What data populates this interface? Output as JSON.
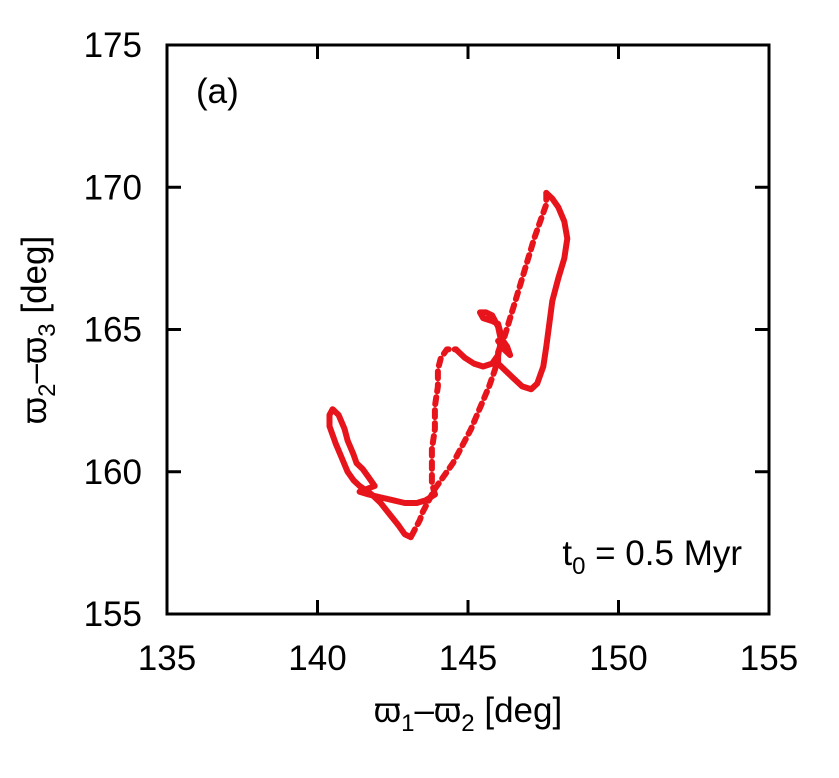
{
  "chart_data": {
    "type": "scatter",
    "title": "",
    "xlabel": {
      "pre": "ϖ",
      "sub1": "1",
      "mid": "–ϖ",
      "sub2": "2",
      "post": " [deg]"
    },
    "ylabel": {
      "pre": "ϖ",
      "sub1": "2",
      "mid": "–ϖ",
      "sub2": "3",
      "post": " [deg]"
    },
    "xlim": [
      135,
      155
    ],
    "ylim": [
      155,
      175
    ],
    "x_ticks": [
      "135",
      "140",
      "145",
      "150",
      "155"
    ],
    "y_ticks": [
      "155",
      "160",
      "165",
      "170",
      "175"
    ],
    "grid": false,
    "panel_label": "(a)",
    "annotation": {
      "pre": "t",
      "sub": "0",
      "post": " = 0.5 Myr"
    },
    "series": [
      {
        "color": "#e8141c",
        "segments": [
          {
            "style": "dotted",
            "points": [
              [
                147.6,
                169.8
              ],
              [
                147.6,
                169.4
              ],
              [
                147.4,
                168.8
              ],
              [
                147.2,
                168.2
              ],
              [
                147.0,
                167.5
              ],
              [
                146.8,
                166.8
              ],
              [
                146.6,
                166.1
              ],
              [
                146.4,
                165.4
              ],
              [
                146.2,
                164.7
              ],
              [
                146.0,
                164.1
              ],
              [
                145.9,
                163.6
              ],
              [
                145.7,
                163.0
              ],
              [
                145.5,
                162.5
              ],
              [
                145.3,
                162.0
              ],
              [
                145.1,
                161.5
              ],
              [
                144.9,
                161.1
              ],
              [
                144.7,
                160.7
              ],
              [
                144.5,
                160.3
              ],
              [
                144.3,
                160.0
              ],
              [
                144.1,
                159.7
              ],
              [
                143.9,
                159.4
              ],
              [
                143.7,
                159.0
              ],
              [
                143.5,
                158.6
              ],
              [
                143.4,
                158.3
              ],
              [
                143.2,
                157.9
              ],
              [
                143.1,
                157.7
              ]
            ]
          },
          {
            "style": "solid",
            "points": [
              [
                143.1,
                157.7
              ],
              [
                142.9,
                157.8
              ],
              [
                142.7,
                158.1
              ],
              [
                142.4,
                158.5
              ],
              [
                142.1,
                158.9
              ],
              [
                141.8,
                159.2
              ],
              [
                141.4,
                159.5
              ],
              [
                141.2,
                159.7
              ],
              [
                141.0,
                160.0
              ],
              [
                140.8,
                160.5
              ],
              [
                140.6,
                161.0
              ],
              [
                140.4,
                161.6
              ],
              [
                140.4,
                162.0
              ],
              [
                140.5,
                162.2
              ],
              [
                140.7,
                162.0
              ],
              [
                140.9,
                161.5
              ],
              [
                141.0,
                161.1
              ],
              [
                141.2,
                160.6
              ],
              [
                141.3,
                160.3
              ],
              [
                141.5,
                160.1
              ],
              [
                141.7,
                159.8
              ],
              [
                141.9,
                159.5
              ],
              [
                141.4,
                159.3
              ],
              [
                141.7,
                159.2
              ],
              [
                142.1,
                159.1
              ],
              [
                142.5,
                159.0
              ],
              [
                142.9,
                158.9
              ],
              [
                143.3,
                158.9
              ],
              [
                143.6,
                159.0
              ],
              [
                143.9,
                159.2
              ]
            ]
          },
          {
            "style": "dotted",
            "points": [
              [
                143.9,
                159.2
              ],
              [
                143.8,
                159.6
              ],
              [
                143.8,
                160.2
              ],
              [
                143.8,
                160.8
              ],
              [
                143.9,
                161.5
              ],
              [
                143.9,
                162.3
              ],
              [
                144.0,
                163.0
              ],
              [
                144.0,
                163.6
              ],
              [
                144.1,
                164.0
              ],
              [
                144.3,
                164.3
              ],
              [
                144.6,
                164.3
              ]
            ]
          },
          {
            "style": "solid",
            "points": [
              [
                144.6,
                164.3
              ],
              [
                144.9,
                164.0
              ],
              [
                145.2,
                163.8
              ],
              [
                145.5,
                163.7
              ],
              [
                145.8,
                163.8
              ],
              [
                146.0,
                164.1
              ],
              [
                146.1,
                164.6
              ],
              [
                146.0,
                165.1
              ],
              [
                145.8,
                165.5
              ],
              [
                145.6,
                165.6
              ],
              [
                145.4,
                165.6
              ],
              [
                145.5,
                165.4
              ],
              [
                145.8,
                165.3
              ],
              [
                146.0,
                165.2
              ],
              [
                146.1,
                164.8
              ],
              [
                146.1,
                164.5
              ],
              [
                146.0,
                164.2
              ],
              [
                146.0,
                163.8
              ],
              [
                146.2,
                163.6
              ],
              [
                146.5,
                163.3
              ],
              [
                146.8,
                163.0
              ],
              [
                147.1,
                162.9
              ],
              [
                147.3,
                163.1
              ],
              [
                147.5,
                163.7
              ],
              [
                147.6,
                164.4
              ],
              [
                147.7,
                165.2
              ],
              [
                147.8,
                166.0
              ],
              [
                148.0,
                166.8
              ],
              [
                148.2,
                167.5
              ],
              [
                148.3,
                168.2
              ],
              [
                148.2,
                168.8
              ],
              [
                148.0,
                169.3
              ],
              [
                147.8,
                169.6
              ],
              [
                147.6,
                169.8
              ]
            ]
          },
          {
            "style": "solid",
            "points": [
              [
                146.0,
                164.6
              ],
              [
                146.2,
                164.3
              ],
              [
                146.4,
                164.1
              ],
              [
                146.3,
                164.4
              ],
              [
                146.1,
                164.7
              ]
            ]
          }
        ]
      }
    ]
  }
}
